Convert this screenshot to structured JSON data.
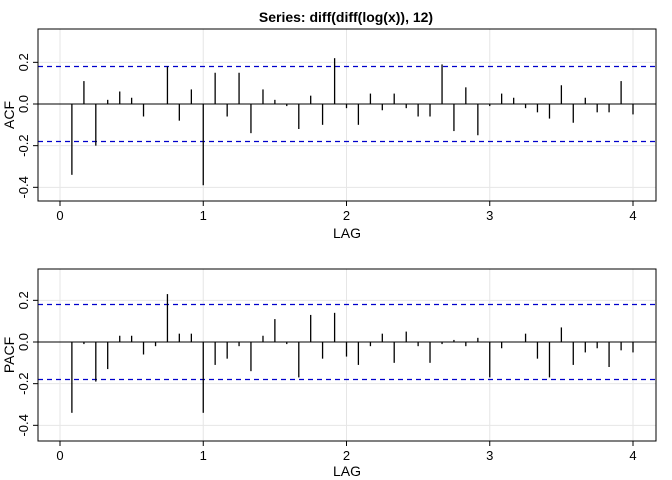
{
  "title": "Series:  diff(diff(log(x)), 12)",
  "colors": {
    "bar": "#000000",
    "ci": "#0000CC",
    "grid": "#E6E6E6",
    "frame": "#000000"
  },
  "chart_data": [
    {
      "type": "bar",
      "panel": "ACF",
      "xlabel": "LAG",
      "ylabel": "ACF",
      "xlim": [
        0,
        4
      ],
      "ylim": [
        -0.4,
        0.2
      ],
      "xticks": [
        "0",
        "1",
        "2",
        "3",
        "4"
      ],
      "yticks": [
        "-0.4",
        "-0.2",
        "0.0",
        "0.2"
      ],
      "grid": true,
      "ci": [
        0.18,
        -0.18
      ],
      "lags": [
        0.083,
        0.167,
        0.25,
        0.333,
        0.417,
        0.5,
        0.583,
        0.667,
        0.75,
        0.833,
        0.917,
        1.0,
        1.083,
        1.167,
        1.25,
        1.333,
        1.417,
        1.5,
        1.583,
        1.667,
        1.75,
        1.833,
        1.917,
        2.0,
        2.083,
        2.167,
        2.25,
        2.333,
        2.417,
        2.5,
        2.583,
        2.667,
        2.75,
        2.833,
        2.917,
        3.0,
        3.083,
        3.167,
        3.25,
        3.333,
        3.417,
        3.5,
        3.583,
        3.667,
        3.75,
        3.833,
        3.917,
        4.0
      ],
      "values": [
        -0.34,
        0.11,
        -0.2,
        0.02,
        0.06,
        0.03,
        -0.06,
        0.0,
        0.18,
        -0.08,
        0.07,
        -0.39,
        0.15,
        -0.06,
        0.15,
        -0.14,
        0.07,
        0.02,
        -0.01,
        -0.12,
        0.04,
        -0.1,
        0.22,
        -0.02,
        -0.1,
        0.05,
        -0.03,
        0.05,
        -0.02,
        -0.06,
        -0.06,
        0.19,
        -0.13,
        0.08,
        -0.15,
        -0.01,
        0.05,
        0.03,
        -0.02,
        -0.04,
        -0.07,
        0.09,
        -0.09,
        0.03,
        -0.04,
        -0.04,
        0.11,
        -0.05
      ]
    },
    {
      "type": "bar",
      "panel": "PACF",
      "xlabel": "LAG",
      "ylabel": "PACF",
      "xlim": [
        0,
        4
      ],
      "ylim": [
        -0.4,
        0.2
      ],
      "xticks": [
        "0",
        "1",
        "2",
        "3",
        "4"
      ],
      "yticks": [
        "-0.4",
        "-0.2",
        "0.0",
        "0.2"
      ],
      "grid": true,
      "ci": [
        0.18,
        -0.18
      ],
      "lags": [
        0.083,
        0.167,
        0.25,
        0.333,
        0.417,
        0.5,
        0.583,
        0.667,
        0.75,
        0.833,
        0.917,
        1.0,
        1.083,
        1.167,
        1.25,
        1.333,
        1.417,
        1.5,
        1.583,
        1.667,
        1.75,
        1.833,
        1.917,
        2.0,
        2.083,
        2.167,
        2.25,
        2.333,
        2.417,
        2.5,
        2.583,
        2.667,
        2.75,
        2.833,
        2.917,
        3.0,
        3.083,
        3.167,
        3.25,
        3.333,
        3.417,
        3.5,
        3.583,
        3.667,
        3.75,
        3.833,
        3.917,
        4.0
      ],
      "values": [
        -0.34,
        -0.01,
        -0.19,
        -0.13,
        0.03,
        0.03,
        -0.06,
        -0.02,
        0.23,
        0.04,
        0.04,
        -0.34,
        -0.11,
        -0.08,
        -0.02,
        -0.14,
        0.03,
        0.11,
        -0.01,
        -0.17,
        0.13,
        -0.08,
        0.14,
        -0.07,
        -0.11,
        -0.02,
        0.04,
        -0.1,
        0.05,
        -0.02,
        -0.1,
        -0.01,
        0.01,
        -0.02,
        0.02,
        -0.17,
        -0.03,
        0.0,
        0.04,
        -0.08,
        -0.17,
        0.07,
        -0.11,
        -0.05,
        -0.03,
        -0.12,
        -0.04,
        -0.05
      ]
    }
  ]
}
